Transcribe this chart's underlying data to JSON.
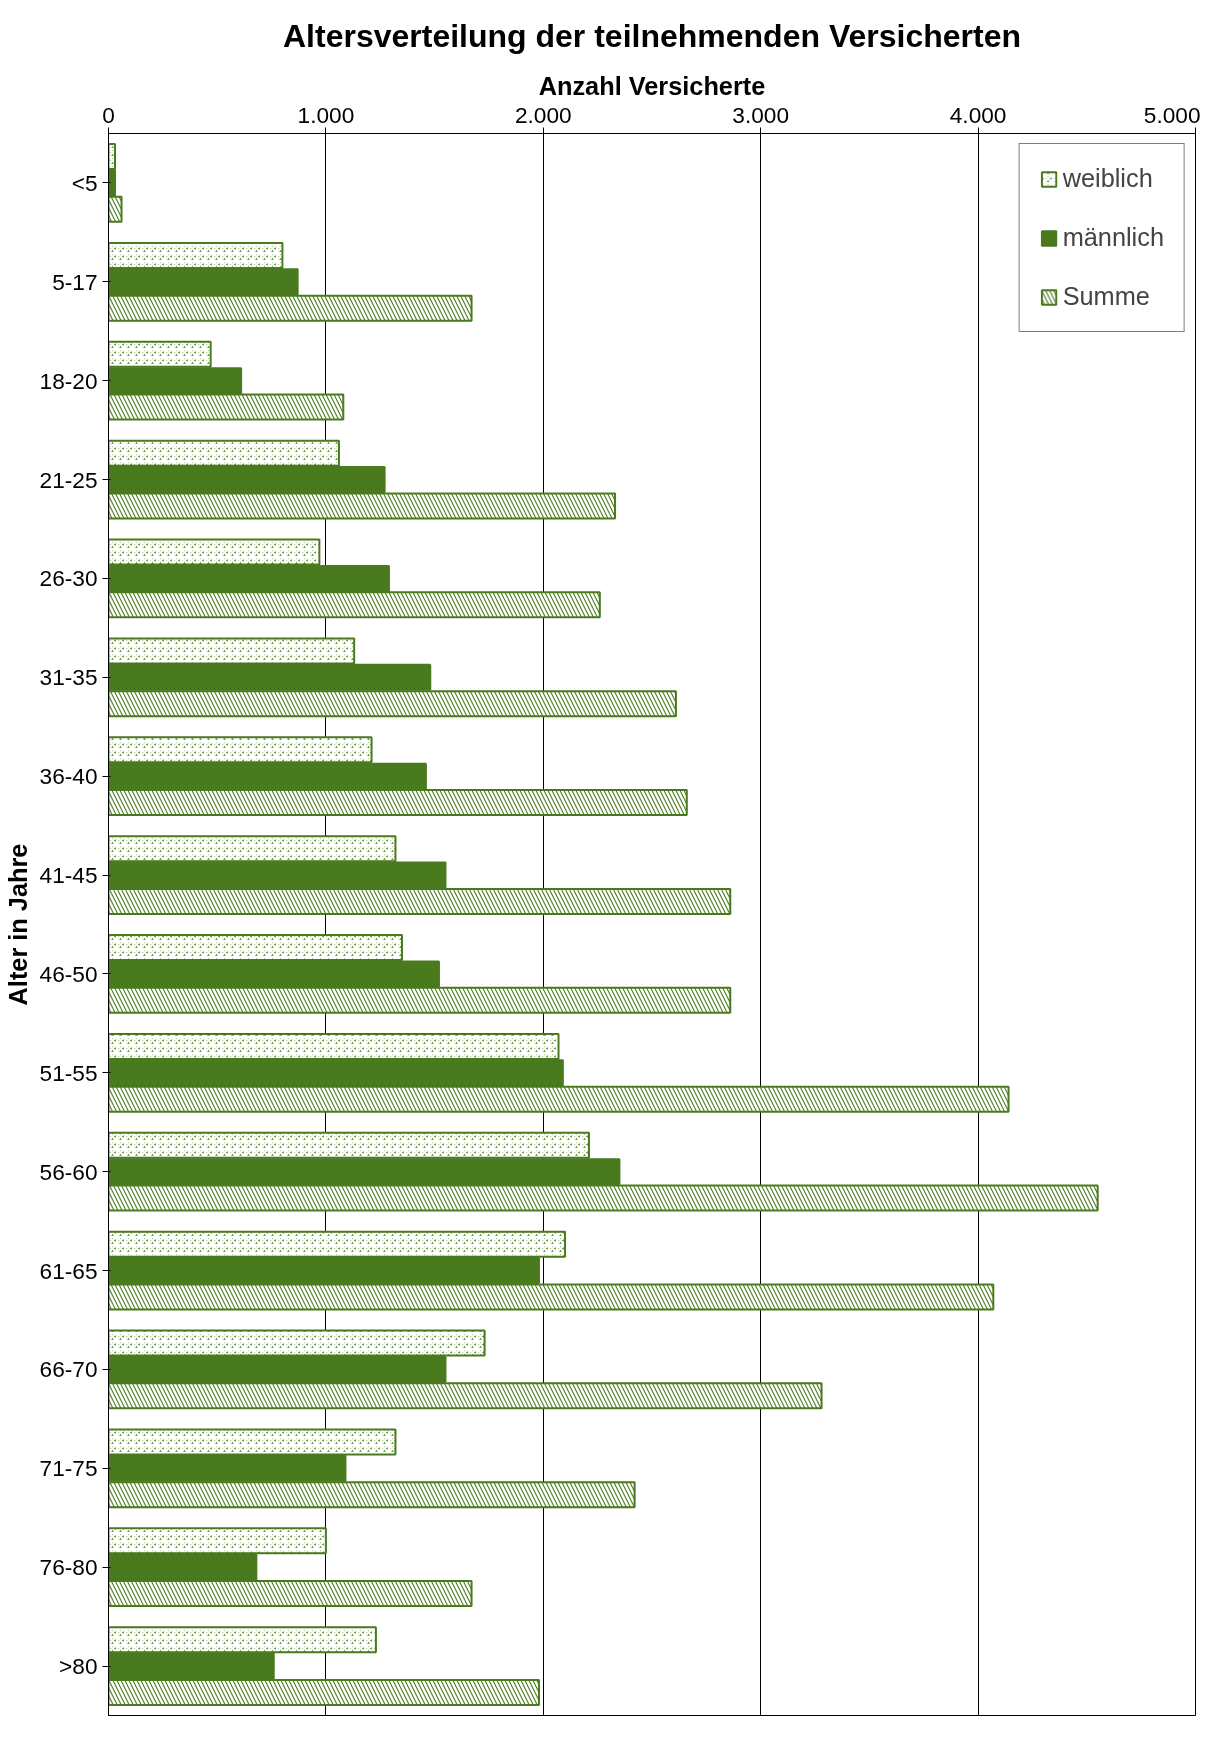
{
  "chart_data": {
    "type": "bar",
    "orientation": "horizontal",
    "title": "Altersverteilung der teilnehmenden Versicherten",
    "xlabel": "Anzahl Versicherte",
    "ylabel": "Alter in Jahre",
    "categories": [
      "<5",
      "5-17",
      "18-20",
      "21-25",
      "26-30",
      "31-35",
      "36-40",
      "41-45",
      "46-50",
      "51-55",
      "56-60",
      "61-65",
      "66-70",
      "71-75",
      "76-80",
      ">80"
    ],
    "series": [
      {
        "name": "weiblich",
        "color": "#4a7a1e",
        "values": [
          30,
          800,
          470,
          1060,
          970,
          1130,
          1210,
          1320,
          1350,
          2070,
          2210,
          2100,
          1730,
          1320,
          1000,
          1230
        ]
      },
      {
        "name": "männlich",
        "color": "#4a7a1e",
        "values": [
          30,
          870,
          610,
          1270,
          1290,
          1480,
          1460,
          1550,
          1520,
          2090,
          2350,
          1980,
          1550,
          1090,
          680,
          760
        ]
      },
      {
        "name": "Summe",
        "color": "#4a7a1e",
        "values": [
          60,
          1670,
          1080,
          2330,
          2260,
          2610,
          2660,
          2860,
          2860,
          4140,
          4550,
          4070,
          3280,
          2420,
          1670,
          1980
        ]
      }
    ],
    "xlim": [
      0,
      5000
    ],
    "xticks": [
      0,
      {
        "value": 1000,
        "label": "1.000"
      },
      {
        "value": 2000,
        "label": "2.000"
      },
      {
        "value": 3000,
        "label": "3.000"
      },
      {
        "value": 4000,
        "label": "4.000"
      },
      {
        "value": 5000,
        "label": "5.000"
      }
    ],
    "grid": "x",
    "legend": "top right"
  }
}
